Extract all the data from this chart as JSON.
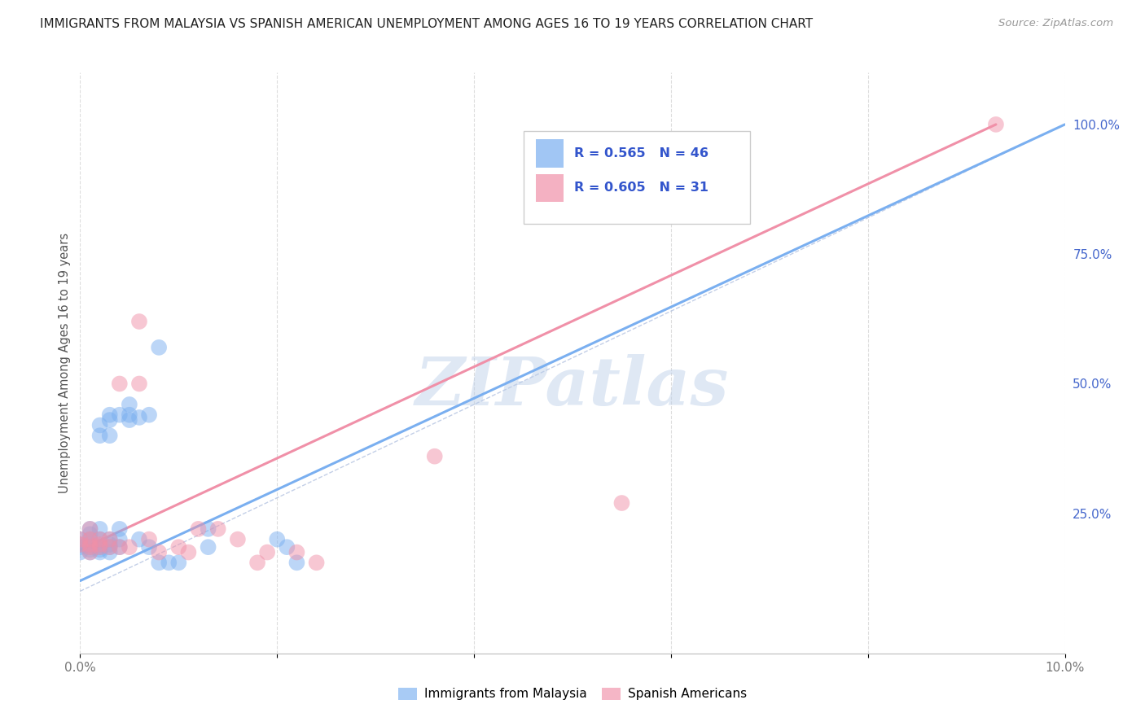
{
  "title": "IMMIGRANTS FROM MALAYSIA VS SPANISH AMERICAN UNEMPLOYMENT AMONG AGES 16 TO 19 YEARS CORRELATION CHART",
  "source": "Source: ZipAtlas.com",
  "ylabel": "Unemployment Among Ages 16 to 19 years",
  "xlim": [
    0.0,
    0.1
  ],
  "ylim": [
    -0.02,
    1.1
  ],
  "y_axis_min": 0.0,
  "y_axis_max": 1.0,
  "x_ticks": [
    0.0,
    0.02,
    0.04,
    0.06,
    0.08,
    0.1
  ],
  "x_tick_labels": [
    "0.0%",
    "",
    "",
    "",
    "",
    "10.0%"
  ],
  "y_ticks_right": [
    0.0,
    0.25,
    0.5,
    0.75,
    1.0
  ],
  "y_tick_labels_right": [
    "",
    "25.0%",
    "50.0%",
    "75.0%",
    "100.0%"
  ],
  "legend_blue_R": "0.565",
  "legend_blue_N": "46",
  "legend_pink_R": "0.605",
  "legend_pink_N": "31",
  "legend_blue_label": "Immigrants from Malaysia",
  "legend_pink_label": "Spanish Americans",
  "watermark": "ZIPatlas",
  "title_color": "#222222",
  "source_color": "#999999",
  "blue_color": "#7aaff0",
  "pink_color": "#f090a8",
  "blue_scatter": [
    [
      0.0,
      0.175
    ],
    [
      0.0,
      0.185
    ],
    [
      0.0,
      0.19
    ],
    [
      0.0,
      0.2
    ],
    [
      0.001,
      0.175
    ],
    [
      0.001,
      0.18
    ],
    [
      0.001,
      0.185
    ],
    [
      0.001,
      0.19
    ],
    [
      0.001,
      0.2
    ],
    [
      0.001,
      0.21
    ],
    [
      0.001,
      0.22
    ],
    [
      0.002,
      0.175
    ],
    [
      0.002,
      0.18
    ],
    [
      0.002,
      0.185
    ],
    [
      0.002,
      0.19
    ],
    [
      0.002,
      0.2
    ],
    [
      0.002,
      0.22
    ],
    [
      0.002,
      0.4
    ],
    [
      0.002,
      0.42
    ],
    [
      0.003,
      0.175
    ],
    [
      0.003,
      0.185
    ],
    [
      0.003,
      0.19
    ],
    [
      0.003,
      0.2
    ],
    [
      0.003,
      0.4
    ],
    [
      0.003,
      0.43
    ],
    [
      0.003,
      0.44
    ],
    [
      0.004,
      0.185
    ],
    [
      0.004,
      0.2
    ],
    [
      0.004,
      0.22
    ],
    [
      0.004,
      0.44
    ],
    [
      0.005,
      0.43
    ],
    [
      0.005,
      0.44
    ],
    [
      0.005,
      0.46
    ],
    [
      0.006,
      0.2
    ],
    [
      0.006,
      0.435
    ],
    [
      0.007,
      0.185
    ],
    [
      0.007,
      0.44
    ],
    [
      0.008,
      0.155
    ],
    [
      0.008,
      0.57
    ],
    [
      0.009,
      0.155
    ],
    [
      0.01,
      0.155
    ],
    [
      0.013,
      0.185
    ],
    [
      0.013,
      0.22
    ],
    [
      0.02,
      0.2
    ],
    [
      0.021,
      0.185
    ],
    [
      0.022,
      0.155
    ]
  ],
  "pink_scatter": [
    [
      0.0,
      0.19
    ],
    [
      0.0,
      0.2
    ],
    [
      0.001,
      0.175
    ],
    [
      0.001,
      0.185
    ],
    [
      0.001,
      0.19
    ],
    [
      0.001,
      0.2
    ],
    [
      0.001,
      0.22
    ],
    [
      0.002,
      0.185
    ],
    [
      0.002,
      0.19
    ],
    [
      0.002,
      0.2
    ],
    [
      0.003,
      0.185
    ],
    [
      0.003,
      0.2
    ],
    [
      0.004,
      0.185
    ],
    [
      0.004,
      0.5
    ],
    [
      0.005,
      0.185
    ],
    [
      0.006,
      0.62
    ],
    [
      0.006,
      0.5
    ],
    [
      0.007,
      0.2
    ],
    [
      0.008,
      0.175
    ],
    [
      0.01,
      0.185
    ],
    [
      0.011,
      0.175
    ],
    [
      0.012,
      0.22
    ],
    [
      0.014,
      0.22
    ],
    [
      0.016,
      0.2
    ],
    [
      0.018,
      0.155
    ],
    [
      0.019,
      0.175
    ],
    [
      0.022,
      0.175
    ],
    [
      0.024,
      0.155
    ],
    [
      0.036,
      0.36
    ],
    [
      0.055,
      0.27
    ],
    [
      0.093,
      1.0
    ]
  ],
  "blue_line_x": [
    0.0,
    0.1
  ],
  "blue_line_y": [
    0.12,
    1.0
  ],
  "pink_line_x": [
    0.0,
    0.093
  ],
  "pink_line_y": [
    0.18,
    1.0
  ],
  "diag_line_x": [
    0.0,
    0.1
  ],
  "diag_line_y": [
    0.1,
    1.0
  ],
  "background_color": "#ffffff",
  "grid_color": "#dddddd"
}
